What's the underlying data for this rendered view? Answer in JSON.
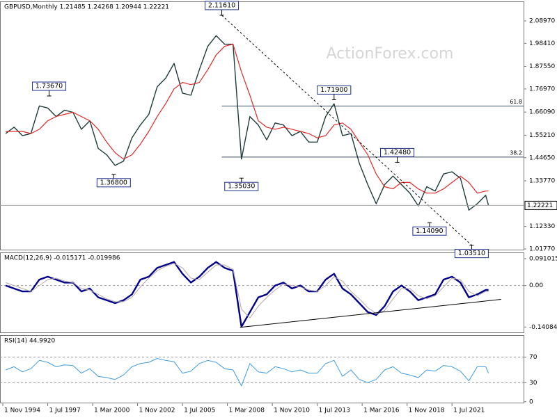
{
  "chart_data": {
    "type": "financial",
    "watermark": "ActionForex.com",
    "xlim": [
      "1994-09",
      "2025-10"
    ],
    "xticks": [
      {
        "value": "1994-11",
        "label": "1 Nov 1994"
      },
      {
        "value": "1997-07",
        "label": "1 Jul 1997"
      },
      {
        "value": "2000-03",
        "label": "1 Mar 2000"
      },
      {
        "value": "2002-11",
        "label": "1 Nov 2002"
      },
      {
        "value": "2005-07",
        "label": "1 Jul 2005"
      },
      {
        "value": "2008-03",
        "label": "1 Mar 2008"
      },
      {
        "value": "2010-11",
        "label": "1 Nov 2010"
      },
      {
        "value": "2013-07",
        "label": "1 Jul 2013"
      },
      {
        "value": "2016-03",
        "label": "1 Mar 2016"
      },
      {
        "value": "2018-11",
        "label": "1 Nov 2018"
      },
      {
        "value": "2021-07",
        "label": "1 Jul 2021"
      }
    ],
    "x": [
      "1995-01",
      "1995-07",
      "1996-01",
      "1996-07",
      "1997-01",
      "1997-07",
      "1998-01",
      "1998-07",
      "1999-01",
      "1999-07",
      "2000-01",
      "2000-07",
      "2001-01",
      "2001-07",
      "2002-01",
      "2002-07",
      "2003-01",
      "2003-07",
      "2004-01",
      "2004-07",
      "2005-01",
      "2005-07",
      "2006-01",
      "2006-07",
      "2007-01",
      "2007-07",
      "2008-01",
      "2008-07",
      "2009-01",
      "2009-07",
      "2010-01",
      "2010-07",
      "2011-01",
      "2011-07",
      "2012-01",
      "2012-07",
      "2013-01",
      "2013-07",
      "2014-01",
      "2014-07",
      "2015-01",
      "2015-07",
      "2016-01",
      "2016-07",
      "2017-01",
      "2017-07",
      "2018-01",
      "2018-07",
      "2019-01",
      "2019-07",
      "2020-01",
      "2020-07",
      "2021-01",
      "2021-07",
      "2022-01",
      "2022-07",
      "2023-01",
      "2023-07",
      "2023-09"
    ],
    "panels": [
      {
        "title": "GBPUSD,Monthly  1.21485 1.24268 1.20944 1.22221",
        "ylim": [
          1.011,
          2.178
        ],
        "yticks": [
          {
            "value": 2.0897,
            "label": "2.08970"
          },
          {
            "value": 1.9841,
            "label": "1.98410"
          },
          {
            "value": 1.8755,
            "label": "1.87550"
          },
          {
            "value": 1.7697,
            "label": "1.76970"
          },
          {
            "value": 1.6609,
            "label": "1.66090"
          },
          {
            "value": 1.5521,
            "label": "1.55210"
          },
          {
            "value": 1.4465,
            "label": "1.44650"
          },
          {
            "value": 1.3377,
            "label": "1.33770"
          },
          {
            "value": 1.1233,
            "label": "1.12330"
          },
          {
            "value": 1.0177,
            "label": "1.01770"
          }
        ],
        "series": [
          {
            "color": "#1e3a3a",
            "line_width": 1.4,
            "values": [
              1.56,
              1.59,
              1.55,
              1.56,
              1.69,
              1.68,
              1.64,
              1.67,
              1.66,
              1.58,
              1.62,
              1.49,
              1.46,
              1.41,
              1.43,
              1.54,
              1.6,
              1.65,
              1.78,
              1.82,
              1.89,
              1.75,
              1.74,
              1.86,
              1.97,
              2.02,
              1.98,
              1.98,
              1.44,
              1.64,
              1.6,
              1.53,
              1.61,
              1.6,
              1.55,
              1.57,
              1.52,
              1.52,
              1.64,
              1.7,
              1.55,
              1.56,
              1.42,
              1.32,
              1.23,
              1.32,
              1.36,
              1.32,
              1.28,
              1.22,
              1.31,
              1.29,
              1.37,
              1.38,
              1.35,
              1.2,
              1.23,
              1.27,
              1.2222
            ]
          },
          {
            "color": "#e02828",
            "line_width": 1.2,
            "values": [
              1.57,
              1.57,
              1.57,
              1.56,
              1.58,
              1.62,
              1.64,
              1.65,
              1.66,
              1.64,
              1.62,
              1.58,
              1.52,
              1.47,
              1.44,
              1.46,
              1.51,
              1.57,
              1.64,
              1.7,
              1.77,
              1.8,
              1.79,
              1.8,
              1.86,
              1.93,
              1.97,
              1.98,
              1.85,
              1.74,
              1.62,
              1.59,
              1.58,
              1.59,
              1.58,
              1.57,
              1.56,
              1.54,
              1.55,
              1.6,
              1.61,
              1.58,
              1.52,
              1.46,
              1.37,
              1.31,
              1.3,
              1.33,
              1.33,
              1.3,
              1.28,
              1.28,
              1.3,
              1.33,
              1.36,
              1.33,
              1.28,
              1.29,
              1.29
            ]
          }
        ],
        "current": 1.22221,
        "levels": [
          {
            "label": "61.8",
            "value": 1.6895,
            "from": "2007-11"
          },
          {
            "label": "38.2",
            "value": 1.4495,
            "from": "2007-11"
          }
        ],
        "trendlines": [
          {
            "x": [
              "2007-11",
              "2022-09"
            ],
            "values": [
              2.1161,
              1.0351
            ],
            "dashed": true
          }
        ],
        "annotations": [
          {
            "x": "2007-11",
            "value": 2.1161,
            "label": "2.11610"
          },
          {
            "x": "1997-08",
            "value": 1.7367,
            "label": "1.73670"
          },
          {
            "x": "2001-06",
            "value": 1.368,
            "label": "1.36800"
          },
          {
            "x": "2009-01",
            "value": 1.3503,
            "label": "1.35030"
          },
          {
            "x": "2014-07",
            "value": 1.719,
            "label": "1.71900"
          },
          {
            "x": "2018-04",
            "value": 1.4248,
            "label": "1.42480"
          },
          {
            "x": "2020-03",
            "value": 1.1409,
            "label": "1.14090"
          },
          {
            "x": "2022-09",
            "value": 1.0351,
            "label": "1.03510"
          }
        ]
      },
      {
        "title": "MACD(12,26,9) -0.015171 -0.019986",
        "ylim": [
          -0.159,
          0.11
        ],
        "yticks": [
          0.091015,
          {
            "value": 0,
            "label": "0.00"
          },
          -0.140843
        ],
        "levels": [
          {
            "value": 0
          }
        ],
        "series": [
          {
            "color": "#00008b",
            "line_width": 2.4,
            "values": [
              0.0,
              -0.01,
              -0.02,
              -0.02,
              0.02,
              0.03,
              0.02,
              0.01,
              0.01,
              -0.02,
              -0.01,
              -0.04,
              -0.05,
              -0.06,
              -0.05,
              -0.03,
              0.02,
              0.03,
              0.06,
              0.07,
              0.08,
              0.04,
              0.01,
              0.03,
              0.06,
              0.08,
              0.06,
              0.05,
              -0.14,
              -0.09,
              -0.04,
              -0.03,
              0.0,
              0.01,
              -0.01,
              0.0,
              -0.02,
              -0.02,
              0.02,
              0.04,
              -0.01,
              -0.03,
              -0.06,
              -0.09,
              -0.1,
              -0.07,
              -0.02,
              0.0,
              -0.02,
              -0.05,
              -0.04,
              -0.03,
              0.02,
              0.03,
              0.01,
              -0.04,
              -0.03,
              -0.015,
              -0.015
            ]
          },
          {
            "color": "#b8a8a8",
            "line_width": 1,
            "values": [
              0.01,
              0.0,
              -0.01,
              -0.02,
              0.0,
              0.02,
              0.025,
              0.015,
              0.01,
              -0.01,
              -0.015,
              -0.03,
              -0.045,
              -0.055,
              -0.055,
              -0.04,
              -0.005,
              0.025,
              0.05,
              0.065,
              0.075,
              0.06,
              0.025,
              0.02,
              0.045,
              0.07,
              0.07,
              0.055,
              -0.08,
              -0.11,
              -0.07,
              -0.04,
              -0.015,
              0.005,
              0.0,
              -0.005,
              -0.015,
              -0.02,
              0.0,
              0.03,
              0.015,
              -0.02,
              -0.045,
              -0.075,
              -0.095,
              -0.085,
              -0.045,
              -0.01,
              -0.01,
              -0.035,
              -0.045,
              -0.035,
              -0.005,
              0.025,
              0.02,
              -0.02,
              -0.035,
              -0.02,
              -0.02
            ]
          }
        ],
        "trendlines": [
          {
            "x": [
              "2008-12",
              "2024-06"
            ],
            "values": [
              -0.142,
              -0.047
            ],
            "dashed": false
          }
        ]
      },
      {
        "title": "RSI(14) 44.9920",
        "ylim": [
          -2.4,
          103.5
        ],
        "yticks": [
          70,
          30,
          0
        ],
        "levels": [
          {
            "value": 70
          },
          {
            "value": 30
          }
        ],
        "series": [
          {
            "color": "#3d9be0",
            "line_width": 1,
            "values": [
              50,
              55,
              47,
              52,
              65,
              62,
              55,
              58,
              57,
              45,
              52,
              40,
              38,
              35,
              42,
              55,
              60,
              62,
              68,
              65,
              63,
              45,
              48,
              60,
              65,
              62,
              52,
              50,
              25,
              60,
              47,
              45,
              55,
              52,
              47,
              50,
              45,
              45,
              60,
              65,
              40,
              50,
              35,
              30,
              35,
              50,
              55,
              45,
              42,
              38,
              50,
              48,
              57,
              55,
              48,
              33,
              55,
              55,
              45
            ]
          }
        ]
      }
    ]
  }
}
